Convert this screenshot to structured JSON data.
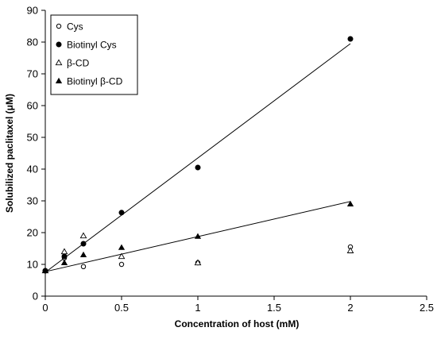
{
  "chart_data": {
    "type": "scatter",
    "xlabel": "Concentration of host (mM)",
    "ylabel": "Solubilized paclitaxel (μM)",
    "xlim": [
      0,
      2.5
    ],
    "ylim": [
      0,
      90
    ],
    "xticks": [
      0,
      0.5,
      1,
      1.5,
      2,
      2.5
    ],
    "xtick_labels": [
      "0",
      "0.5",
      "1",
      "1.5",
      "2",
      "2.5"
    ],
    "yticks": [
      0,
      10,
      20,
      30,
      40,
      50,
      60,
      70,
      80,
      90
    ],
    "ytick_labels": [
      "0",
      "10",
      "20",
      "30",
      "40",
      "50",
      "60",
      "70",
      "80",
      "90"
    ],
    "grid": false,
    "legend_position": "top-left",
    "series": [
      {
        "name": "Cys",
        "marker": "open-circle",
        "points": [
          {
            "x": 0,
            "y": 8
          },
          {
            "x": 0.125,
            "y": 12
          },
          {
            "x": 0.25,
            "y": 9.3
          },
          {
            "x": 0.5,
            "y": 10
          },
          {
            "x": 1,
            "y": 10.5
          },
          {
            "x": 2,
            "y": 15.5
          }
        ]
      },
      {
        "name": "Biotinyl Cys",
        "marker": "filled-circle",
        "points": [
          {
            "x": 0,
            "y": 8
          },
          {
            "x": 0.125,
            "y": 12.5
          },
          {
            "x": 0.25,
            "y": 16.5
          },
          {
            "x": 0.5,
            "y": 26.3
          },
          {
            "x": 1,
            "y": 40.5
          },
          {
            "x": 2,
            "y": 81
          }
        ]
      },
      {
        "name": "β-CD",
        "marker": "open-triangle",
        "points": [
          {
            "x": 0,
            "y": 8
          },
          {
            "x": 0.125,
            "y": 14
          },
          {
            "x": 0.25,
            "y": 19
          },
          {
            "x": 0.5,
            "y": 12.5
          },
          {
            "x": 1,
            "y": 10.5
          },
          {
            "x": 2,
            "y": 14.3
          }
        ]
      },
      {
        "name": "Biotinyl β-CD",
        "marker": "filled-triangle",
        "points": [
          {
            "x": 0,
            "y": 8
          },
          {
            "x": 0.125,
            "y": 10.5
          },
          {
            "x": 0.25,
            "y": 13
          },
          {
            "x": 0.5,
            "y": 15.3
          },
          {
            "x": 1,
            "y": 18.8
          },
          {
            "x": 2,
            "y": 29
          }
        ]
      }
    ],
    "trendlines": [
      {
        "for": "Biotinyl Cys",
        "x": [
          0,
          2
        ],
        "y": [
          7.5,
          79.5
        ]
      },
      {
        "for": "Biotinyl β-CD",
        "x": [
          0,
          2
        ],
        "y": [
          7.7,
          29.8
        ]
      }
    ]
  }
}
